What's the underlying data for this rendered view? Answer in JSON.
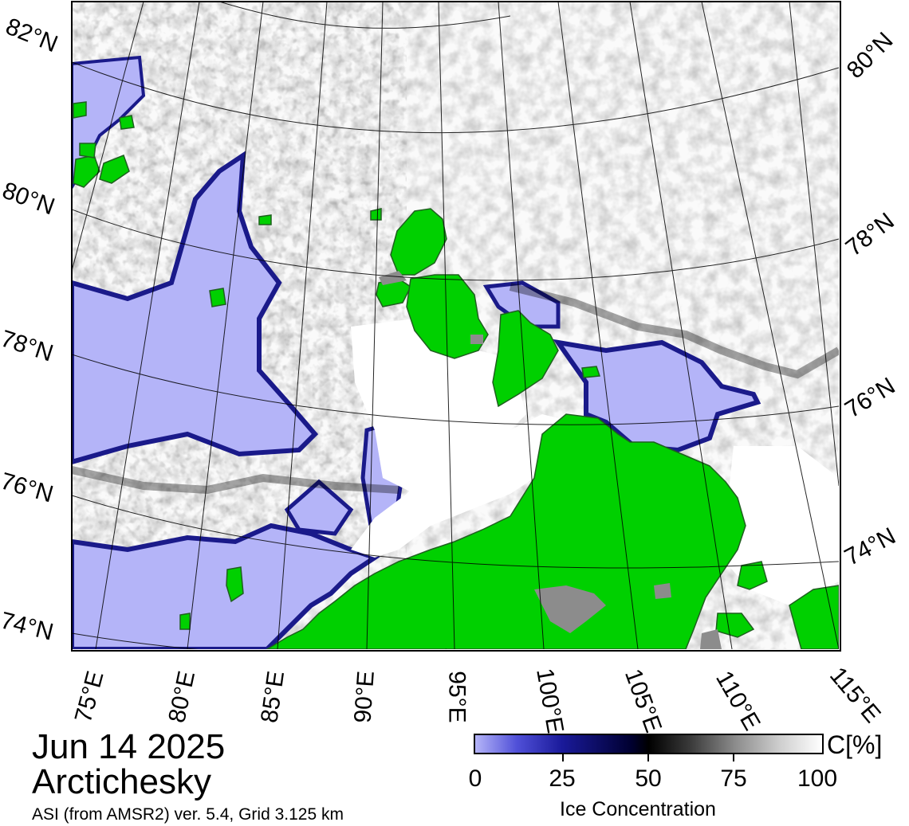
{
  "title": {
    "date": "Jun 14 2025",
    "region": "Arctichesky",
    "credit": "ASI (from AMSR2) ver. 5.4,  Grid 3.125 km"
  },
  "map": {
    "lat_labels_left": [
      "82°N",
      "80°N",
      "78°N",
      "76°N",
      "74°N"
    ],
    "lat_labels_right": [
      "80°N",
      "78°N",
      "76°N",
      "74°N"
    ],
    "lon_labels_bottom": [
      "75°E",
      "80°E",
      "85°E",
      "90°E",
      "95°E",
      "100°E",
      "105°E",
      "110°E",
      "115°E"
    ],
    "colors": {
      "land": "#00d000",
      "land_ice": "#8c8c8c",
      "open_water": "#b4b4f8",
      "high_ice": "#ffffff"
    }
  },
  "colorbar": {
    "ticks": [
      "0",
      "25",
      "50",
      "75",
      "100"
    ],
    "unit": "C[%]",
    "label": "Ice Concentration"
  }
}
